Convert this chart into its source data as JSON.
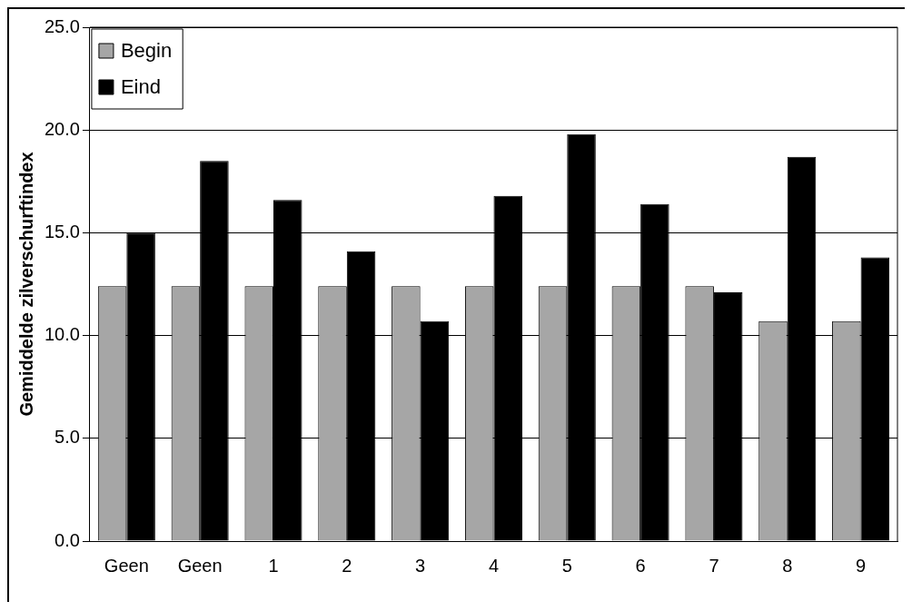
{
  "chart_data": {
    "type": "bar",
    "ylabel": "Gemiddelde zilverschurftindex",
    "categories": [
      "Geen",
      "Geen",
      "1",
      "2",
      "3",
      "4",
      "5",
      "6",
      "7",
      "8",
      "9"
    ],
    "series": [
      {
        "name": "Begin",
        "color": "#a6a6a6",
        "values": [
          12.4,
          12.4,
          12.4,
          12.4,
          12.4,
          12.4,
          12.4,
          12.4,
          12.4,
          10.7,
          10.7
        ]
      },
      {
        "name": "Eind",
        "color": "#000000",
        "values": [
          15.0,
          18.5,
          16.6,
          14.1,
          10.7,
          16.8,
          19.8,
          16.4,
          12.1,
          18.7,
          13.8
        ]
      }
    ],
    "ylim": [
      0,
      25
    ],
    "yticks": [
      {
        "value": 0,
        "label": "0.0"
      },
      {
        "value": 5,
        "label": "5.0"
      },
      {
        "value": 10,
        "label": "10.0"
      },
      {
        "value": 15,
        "label": "15.0"
      },
      {
        "value": 20,
        "label": "20.0"
      },
      {
        "value": 25,
        "label": "25.0"
      }
    ],
    "grid": "y",
    "legend": "top left"
  }
}
